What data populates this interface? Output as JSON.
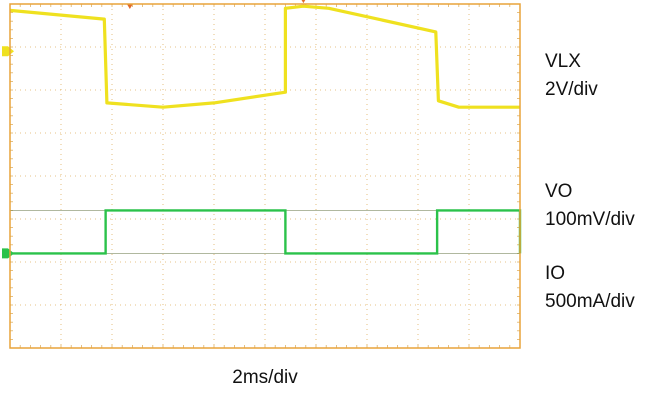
{
  "chart_data": {
    "type": "line",
    "title": "",
    "xlabel": "2ms/div",
    "ylabel": "",
    "grid": true,
    "xlim": [
      0,
      20
    ],
    "x_unit": "ms",
    "divisions": {
      "horizontal": 10,
      "vertical": 8
    },
    "colors": {
      "frame": "#e8a33a",
      "grid": "#e0b060",
      "VLX": "#27d3e6",
      "VO": "#efe11f",
      "IO": "#2bc24a"
    },
    "series": [
      {
        "name": "VLX",
        "scale": "2V/div",
        "switching_intervals_ms": [
          [
            4.8,
            10.8
          ],
          [
            16.8,
            20
          ]
        ],
        "idle_level_div": 6.3,
        "switching_band_div": [
          5.55,
          7.6
        ]
      },
      {
        "name": "VO",
        "scale": "100mV/div",
        "points_div": [
          [
            0,
            3.85
          ],
          [
            3.7,
            3.65
          ],
          [
            3.8,
            1.7
          ],
          [
            6,
            1.6
          ],
          [
            8,
            1.7
          ],
          [
            10.8,
            1.95
          ],
          [
            10.8,
            3.9
          ],
          [
            11.5,
            3.95
          ],
          [
            12.5,
            3.9
          ],
          [
            16.7,
            3.35
          ],
          [
            16.8,
            1.75
          ],
          [
            17.6,
            1.6
          ],
          [
            20,
            1.6
          ]
        ]
      },
      {
        "name": "IO",
        "scale": "500mA/div",
        "levels_div": {
          "low": -1.8,
          "high": -0.8
        },
        "high_intervals_ms": [
          [
            3.75,
            10.8
          ],
          [
            16.75,
            20
          ]
        ]
      }
    ]
  },
  "labels": {
    "vlx_name": "VLX",
    "vlx_scale": "2V/div",
    "vo_name": "VO",
    "vo_scale": "100mV/div",
    "io_name": "IO",
    "io_scale": "500mA/div",
    "time_base": "2ms/div"
  }
}
